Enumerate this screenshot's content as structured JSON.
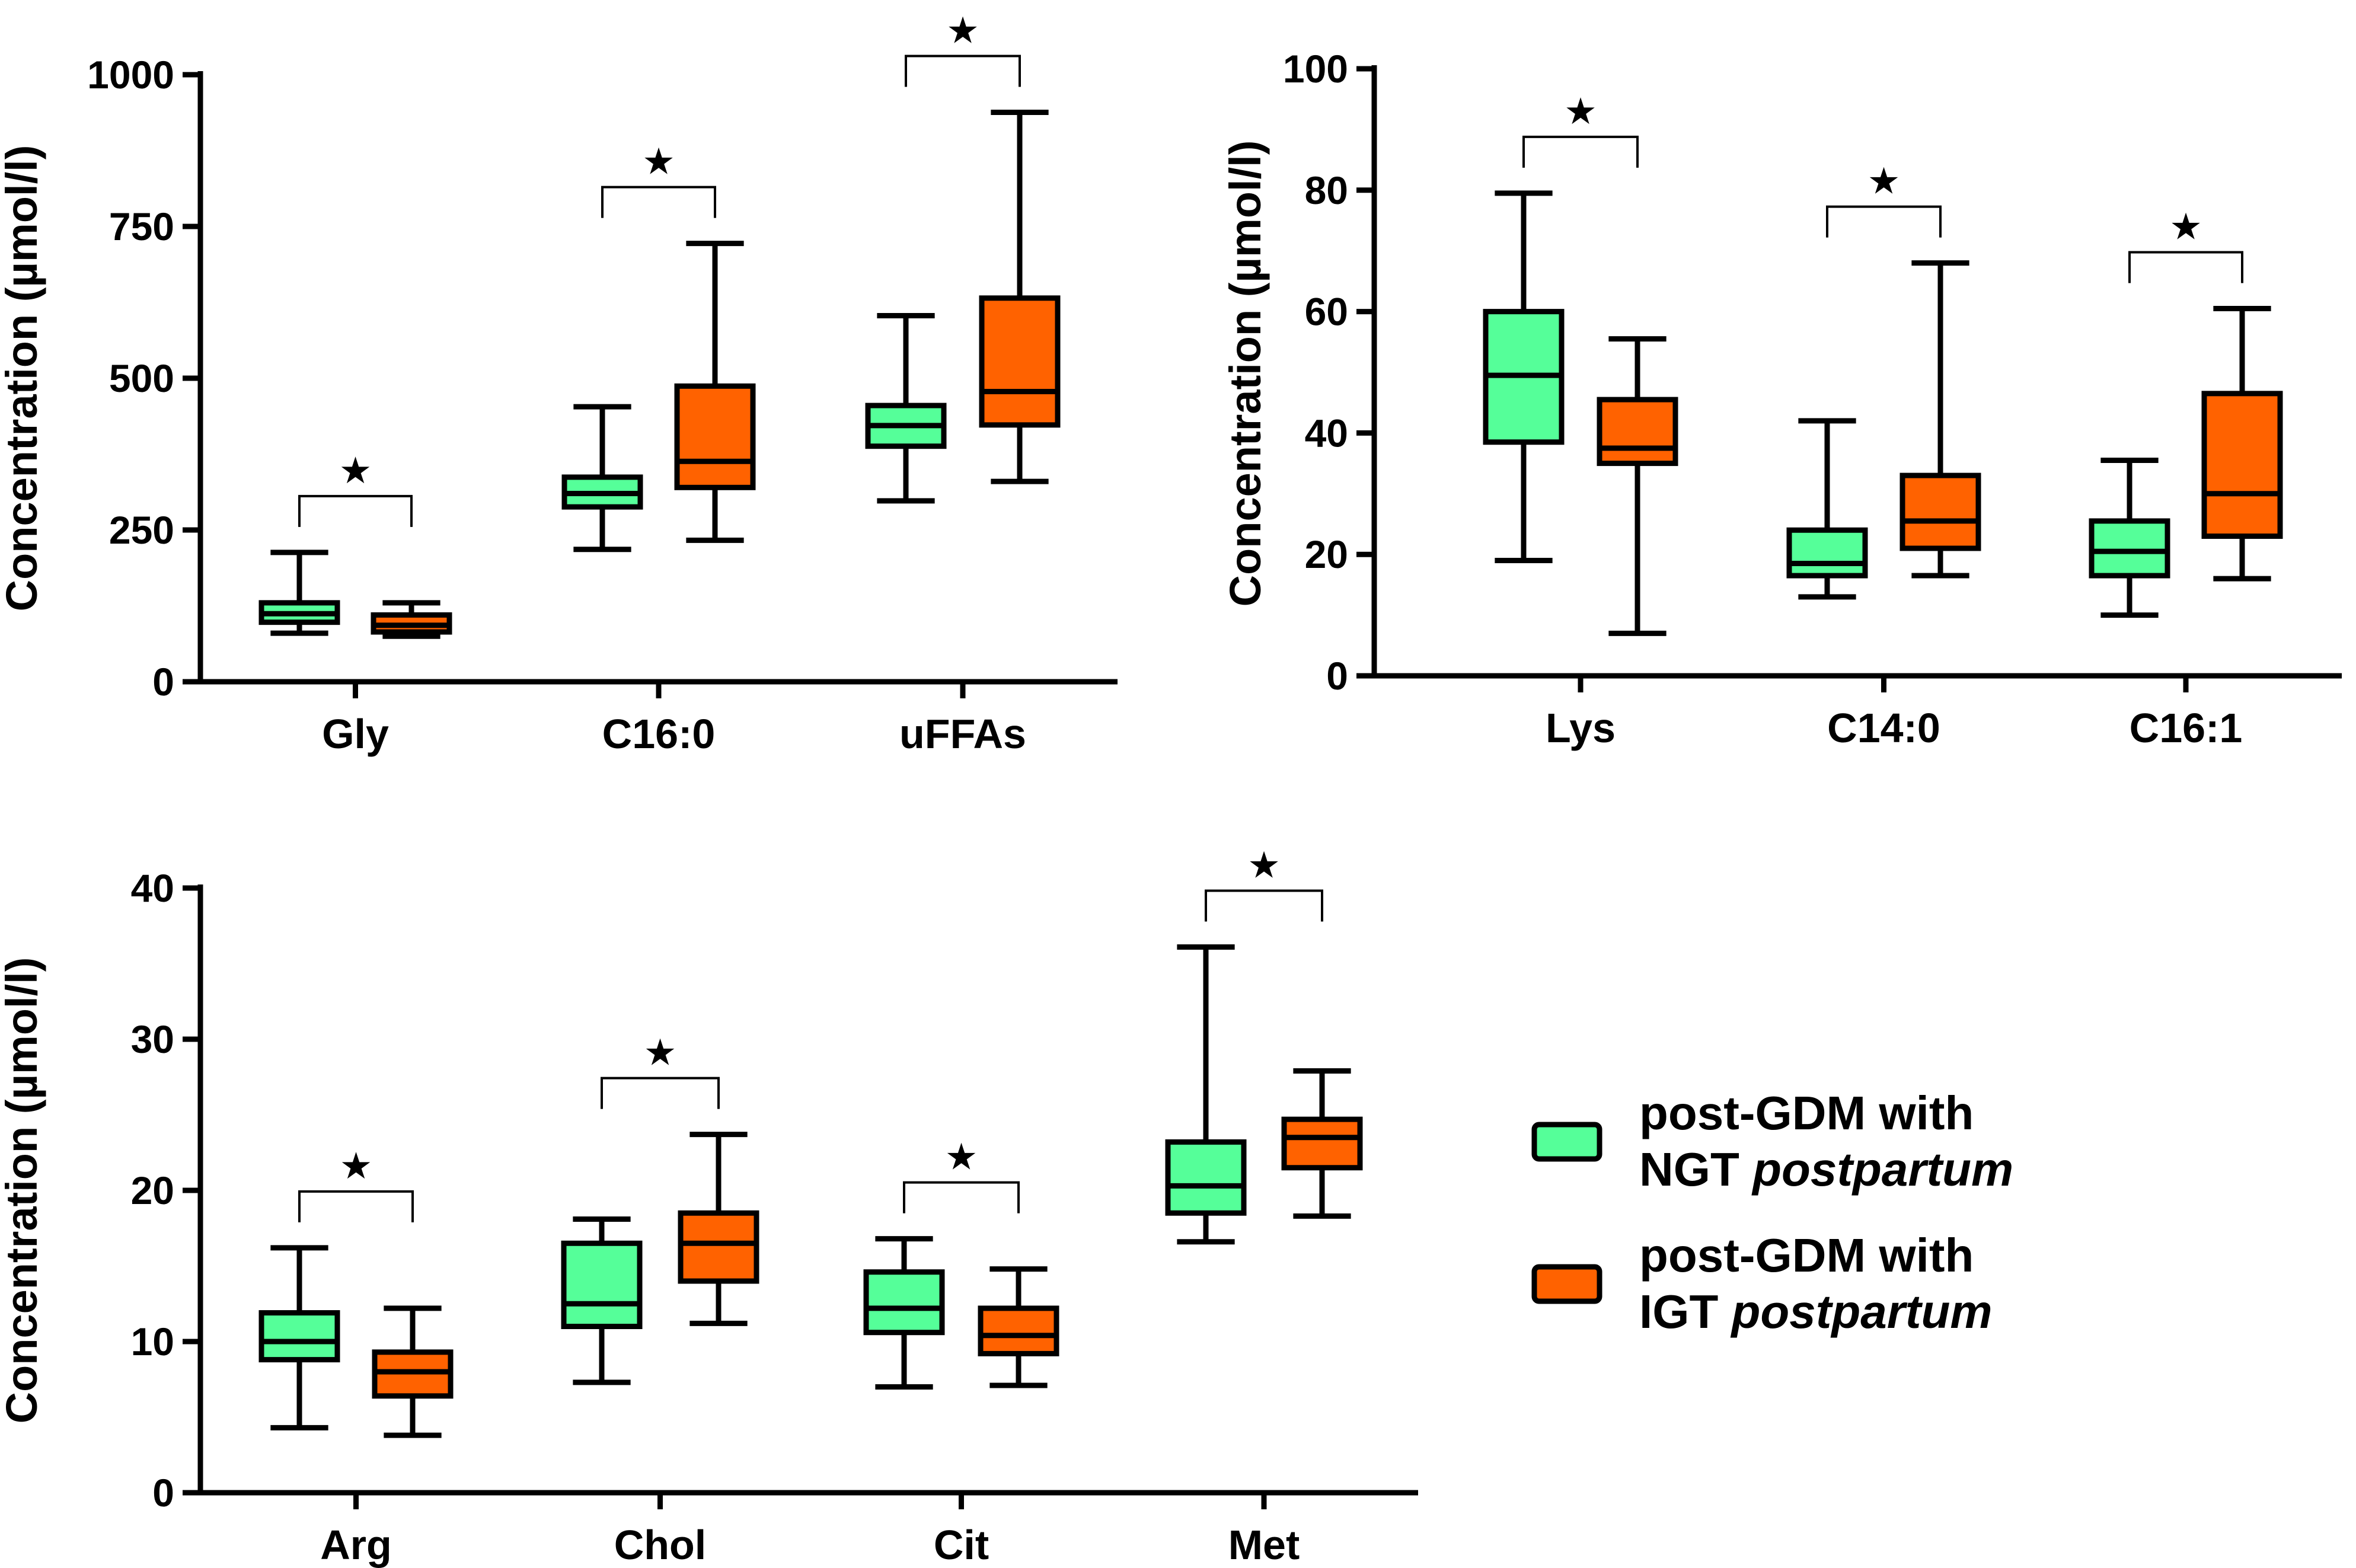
{
  "legend": {
    "items": [
      {
        "line1": "post-GDM with",
        "prefix": "NGT ",
        "italic": "postpartum",
        "color": "#55FF99"
      },
      {
        "line1": "post-GDM with",
        "prefix": "IGT ",
        "italic": "postpartum",
        "color": "#FF6200"
      }
    ]
  },
  "chart_data": [
    {
      "type": "boxplot",
      "ylabel": "Concentration (µmol/l)",
      "ylim": [
        0,
        1000
      ],
      "yticks": [
        0,
        250,
        500,
        750,
        1000
      ],
      "series_names": [
        "post-GDM with NGT postpartum",
        "post-GDM with IGT postpartum"
      ],
      "categories": [
        {
          "label": "Gly",
          "significant": true,
          "boxes": [
            {
              "min": 80,
              "q1": 98,
              "median": 112,
              "q3": 130,
              "max": 213
            },
            {
              "min": 75,
              "q1": 82,
              "median": 93,
              "q3": 110,
              "max": 130
            }
          ]
        },
        {
          "label": "C16:0",
          "significant": true,
          "boxes": [
            {
              "min": 218,
              "q1": 288,
              "median": 310,
              "q3": 337,
              "max": 453
            },
            {
              "min": 233,
              "q1": 320,
              "median": 363,
              "q3": 487,
              "max": 722
            }
          ]
        },
        {
          "label": "uFFAs",
          "significant": true,
          "boxes": [
            {
              "min": 298,
              "q1": 388,
              "median": 422,
              "q3": 455,
              "max": 603
            },
            {
              "min": 330,
              "q1": 423,
              "median": 478,
              "q3": 632,
              "max": 938
            }
          ]
        }
      ]
    },
    {
      "type": "boxplot",
      "ylabel": "Concentration (µmol/l)",
      "ylim": [
        0,
        100
      ],
      "yticks": [
        0,
        20,
        40,
        60,
        80,
        100
      ],
      "series_names": [
        "post-GDM with NGT postpartum",
        "post-GDM with IGT postpartum"
      ],
      "categories": [
        {
          "label": "Lys",
          "significant": true,
          "boxes": [
            {
              "min": 19,
              "q1": 38.5,
              "median": 49.5,
              "q3": 60,
              "max": 79.5
            },
            {
              "min": 7,
              "q1": 35,
              "median": 37.5,
              "q3": 45.5,
              "max": 55.5
            }
          ]
        },
        {
          "label": "C14:0",
          "significant": true,
          "boxes": [
            {
              "min": 13,
              "q1": 16.5,
              "median": 18.5,
              "q3": 24,
              "max": 42
            },
            {
              "min": 16.5,
              "q1": 21,
              "median": 25.5,
              "q3": 33,
              "max": 68
            }
          ]
        },
        {
          "label": "C16:1",
          "significant": true,
          "boxes": [
            {
              "min": 10,
              "q1": 16.5,
              "median": 20.5,
              "q3": 25.5,
              "max": 35.5
            },
            {
              "min": 16,
              "q1": 23,
              "median": 30,
              "q3": 46.5,
              "max": 60.5
            }
          ]
        }
      ]
    },
    {
      "type": "boxplot",
      "ylabel": "Concentration (µmol/l)",
      "ylim": [
        0,
        40
      ],
      "yticks": [
        0,
        10,
        20,
        30,
        40
      ],
      "series_names": [
        "post-GDM with NGT postpartum",
        "post-GDM with IGT postpartum"
      ],
      "categories": [
        {
          "label": "Arg",
          "significant": true,
          "boxes": [
            {
              "min": 4.3,
              "q1": 8.8,
              "median": 10,
              "q3": 11.9,
              "max": 16.2
            },
            {
              "min": 3.8,
              "q1": 6.4,
              "median": 8,
              "q3": 9.3,
              "max": 12.2
            }
          ]
        },
        {
          "label": "Chol",
          "significant": true,
          "boxes": [
            {
              "min": 7.3,
              "q1": 11,
              "median": 12.5,
              "q3": 16.5,
              "max": 18.1
            },
            {
              "min": 11.2,
              "q1": 14,
              "median": 16.5,
              "q3": 18.5,
              "max": 23.7
            }
          ]
        },
        {
          "label": "Cit",
          "significant": true,
          "boxes": [
            {
              "min": 7,
              "q1": 10.6,
              "median": 12.2,
              "q3": 14.6,
              "max": 16.8
            },
            {
              "min": 7.1,
              "q1": 9.2,
              "median": 10.4,
              "q3": 12.2,
              "max": 14.8
            }
          ]
        },
        {
          "label": "Met",
          "significant": true,
          "boxes": [
            {
              "min": 16.6,
              "q1": 18.5,
              "median": 20.3,
              "q3": 23.2,
              "max": 36.1
            },
            {
              "min": 18.3,
              "q1": 21.5,
              "median": 23.5,
              "q3": 24.7,
              "max": 27.9
            }
          ]
        }
      ]
    }
  ]
}
